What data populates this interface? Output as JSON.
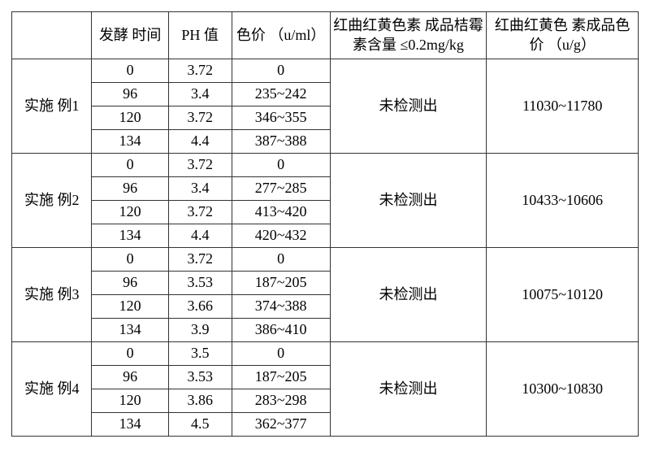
{
  "headers": {
    "example": "",
    "time": "发酵\n时间",
    "ph": "PH\n值",
    "color_value": "色价\n（u/ml）",
    "citrinin": "红曲红黄色素\n成品桔霉素含量\n≤0.2mg/kg",
    "product_color": "红曲红黄色\n素成品色价\n（u/g）"
  },
  "groups": [
    {
      "label": "实施\n例1",
      "citrinin_result": "未检测出",
      "product_color_value": "11030~11780",
      "rows": [
        {
          "time": "0",
          "ph": "3.72",
          "cv": "0"
        },
        {
          "time": "96",
          "ph": "3.4",
          "cv": "235~242"
        },
        {
          "time": "120",
          "ph": "3.72",
          "cv": "346~355"
        },
        {
          "time": "134",
          "ph": "4.4",
          "cv": "387~388"
        }
      ]
    },
    {
      "label": "实施\n例2",
      "citrinin_result": "未检测出",
      "product_color_value": "10433~10606",
      "rows": [
        {
          "time": "0",
          "ph": "3.72",
          "cv": "0"
        },
        {
          "time": "96",
          "ph": "3.4",
          "cv": "277~285"
        },
        {
          "time": "120",
          "ph": "3.72",
          "cv": "413~420"
        },
        {
          "time": "134",
          "ph": "4.4",
          "cv": "420~432"
        }
      ]
    },
    {
      "label": "实施\n例3",
      "citrinin_result": "未检测出",
      "product_color_value": "10075~10120",
      "rows": [
        {
          "time": "0",
          "ph": "3.72",
          "cv": "0"
        },
        {
          "time": "96",
          "ph": "3.53",
          "cv": "187~205"
        },
        {
          "time": "120",
          "ph": "3.66",
          "cv": "374~388"
        },
        {
          "time": "134",
          "ph": "3.9",
          "cv": "386~410"
        }
      ]
    },
    {
      "label": "实施\n例4",
      "citrinin_result": "未检测出",
      "product_color_value": "10300~10830",
      "rows": [
        {
          "time": "0",
          "ph": "3.5",
          "cv": "0"
        },
        {
          "time": "96",
          "ph": "3.53",
          "cv": "187~205"
        },
        {
          "time": "120",
          "ph": "3.86",
          "cv": "283~298"
        },
        {
          "time": "134",
          "ph": "4.5",
          "cv": "362~377"
        }
      ]
    }
  ]
}
